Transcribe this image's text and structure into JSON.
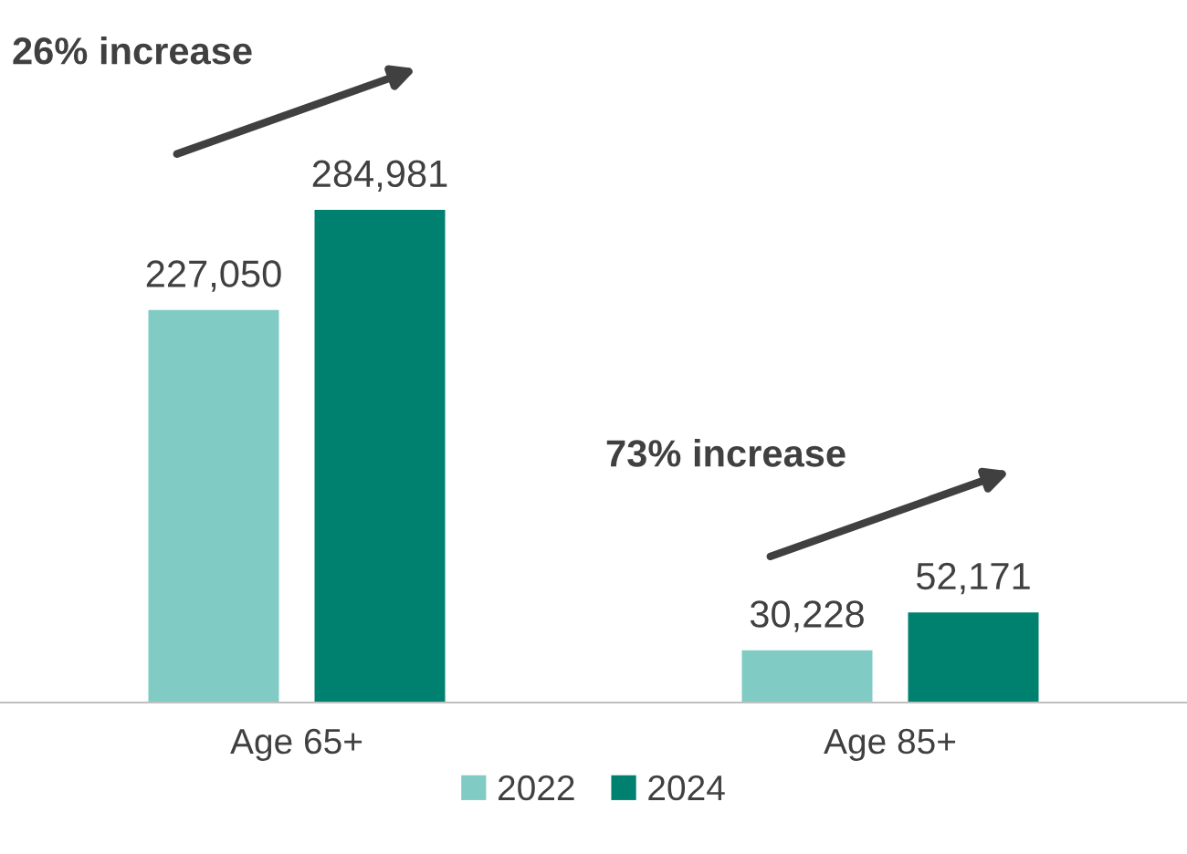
{
  "chart_data": {
    "type": "bar",
    "categories": [
      "Age 65+",
      "Age 85+"
    ],
    "series": [
      {
        "name": "2022",
        "color": "#80cbc4",
        "values": [
          227050,
          30228
        ],
        "value_labels": [
          "227,050",
          "30,228"
        ]
      },
      {
        "name": "2024",
        "color": "#00816f",
        "values": [
          284981,
          52171
        ],
        "value_labels": [
          "284,981",
          "52,171"
        ]
      }
    ],
    "legend": "bottom",
    "grid": false,
    "annotations": [
      "26% increase",
      "73% increase"
    ]
  }
}
